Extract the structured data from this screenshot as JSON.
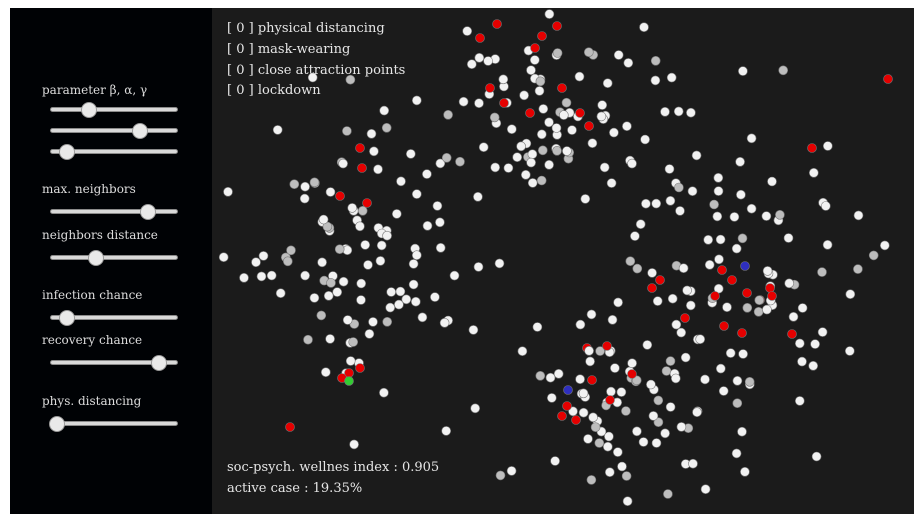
{
  "sidebar": {
    "sliders": [
      {
        "id": "beta",
        "label": "parameter β, α, γ",
        "level": 0.3
      },
      {
        "id": "alpha",
        "label": "",
        "level": 0.71
      },
      {
        "id": "gamma",
        "label": "",
        "level": 0.13
      },
      {
        "id": "max_neighbors",
        "label": "max. neighbors",
        "level": 0.77
      },
      {
        "id": "neighbors_distance",
        "label": "neighbors distance",
        "level": 0.36
      },
      {
        "id": "infection_chance",
        "label": "infection chance",
        "level": 0.13
      },
      {
        "id": "recovery_chance",
        "label": "recovery chance",
        "level": 0.86
      },
      {
        "id": "phys_distancing",
        "label": "phys. distancing",
        "level": 0.05
      }
    ]
  },
  "toggles": [
    {
      "state": "0",
      "label": "physical distancing"
    },
    {
      "state": "0",
      "label": "mask-wearing"
    },
    {
      "state": "0",
      "label": "close attraction points"
    },
    {
      "state": "0",
      "label": "lockdown"
    }
  ],
  "stats": {
    "wellness_label": "soc-psych. wellnes index",
    "wellness_value": "0.905",
    "active_label": "active case",
    "active_value": "19.35%"
  },
  "colors": {
    "susceptible": "#f2f2f2",
    "recovered": "#bdbdbd",
    "infected": "#e50000",
    "exposed": "#2f2fbf",
    "highlight": "#33cc33"
  }
}
